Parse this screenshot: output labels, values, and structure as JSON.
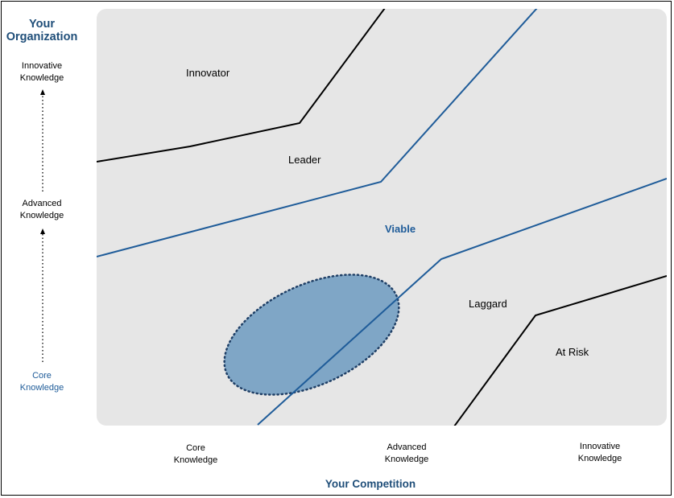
{
  "y_axis": {
    "title_line1": "Your",
    "title_line2": "Organization",
    "levels": [
      {
        "line1": "Innovative",
        "line2": "Knowledge"
      },
      {
        "line1": "Advanced",
        "line2": "Knowledge"
      },
      {
        "line1": "Core",
        "line2": "Knowledge"
      }
    ]
  },
  "x_axis": {
    "title": "Your Competition",
    "levels": [
      {
        "line1": "Core",
        "line2": "Knowledge"
      },
      {
        "line1": "Advanced",
        "line2": "Knowledge"
      },
      {
        "line1": "Innovative",
        "line2": "Knowledge"
      }
    ]
  },
  "zones": {
    "innovator": "Innovator",
    "leader": "Leader",
    "viable": "Viable",
    "laggard": "Laggard",
    "at_risk": "At Risk"
  },
  "colors": {
    "panel": "#e6e6e6",
    "blue_line": "#1f5c99",
    "dark_line": "#000000",
    "ellipse_fill": "#7fa6c6",
    "title_blue": "#1f4e79"
  }
}
